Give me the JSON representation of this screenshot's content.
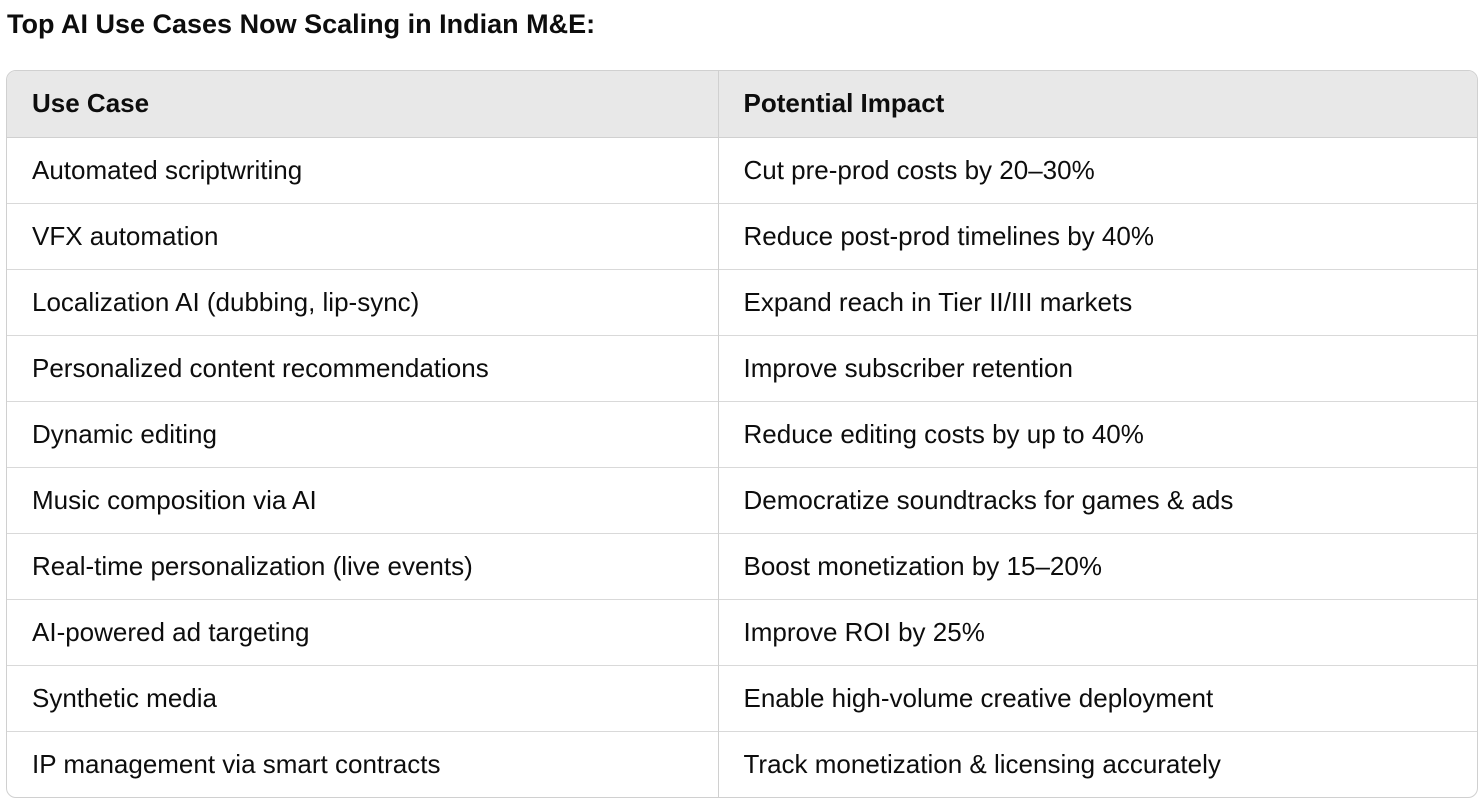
{
  "title": "Top AI Use Cases Now Scaling in Indian M&E:",
  "table": {
    "headers": [
      "Use Case",
      "Potential Impact"
    ],
    "rows": [
      [
        "Automated scriptwriting",
        "Cut pre-prod costs by 20–30%"
      ],
      [
        "VFX automation",
        "Reduce post-prod timelines by 40%"
      ],
      [
        "Localization AI (dubbing, lip-sync)",
        "Expand reach in Tier II/III markets"
      ],
      [
        "Personalized content recommendations",
        "Improve subscriber retention"
      ],
      [
        "Dynamic editing",
        "Reduce editing costs by up to 40%"
      ],
      [
        "Music composition via AI",
        "Democratize soundtracks for games & ads"
      ],
      [
        "Real-time personalization (live events)",
        "Boost monetization by 15–20%"
      ],
      [
        "AI-powered ad targeting",
        "Improve ROI by 25%"
      ],
      [
        "Synthetic media",
        "Enable high-volume creative deployment"
      ],
      [
        "IP management via smart contracts",
        "Track monetization & licensing accurately"
      ]
    ]
  },
  "colors": {
    "header_background": "#e8e8e8",
    "border": "#d0d0d0",
    "text": "#0d0d0d"
  }
}
